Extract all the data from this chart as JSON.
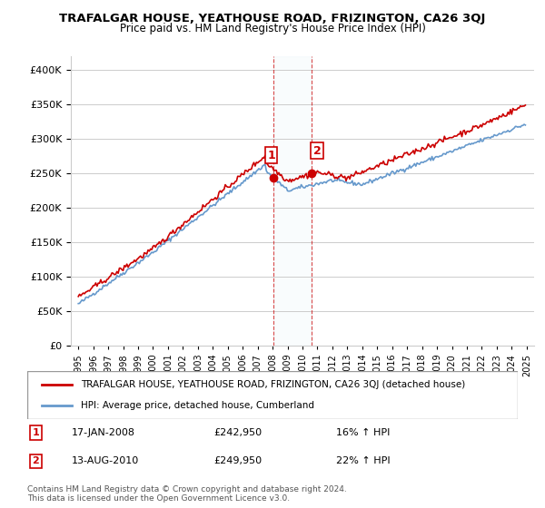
{
  "title": "TRAFALGAR HOUSE, YEATHOUSE ROAD, FRIZINGTON, CA26 3QJ",
  "subtitle": "Price paid vs. HM Land Registry's House Price Index (HPI)",
  "legend_line1": "TRAFALGAR HOUSE, YEATHOUSE ROAD, FRIZINGTON, CA26 3QJ (detached house)",
  "legend_line2": "HPI: Average price, detached house, Cumberland",
  "footnote": "Contains HM Land Registry data © Crown copyright and database right 2024.\nThis data is licensed under the Open Government Licence v3.0.",
  "sale1_label": "1",
  "sale1_date": "17-JAN-2008",
  "sale1_price": "£242,950",
  "sale1_hpi": "16% ↑ HPI",
  "sale2_label": "2",
  "sale2_date": "13-AUG-2010",
  "sale2_price": "£249,950",
  "sale2_hpi": "22% ↑ HPI",
  "red_color": "#cc0000",
  "blue_color": "#6699cc",
  "grid_color": "#cccccc",
  "sale1_x": 2008.04,
  "sale1_y": 242950,
  "sale2_x": 2010.62,
  "sale2_y": 249950,
  "ylim": [
    0,
    420000
  ],
  "xlim": [
    1994.5,
    2025.5
  ]
}
